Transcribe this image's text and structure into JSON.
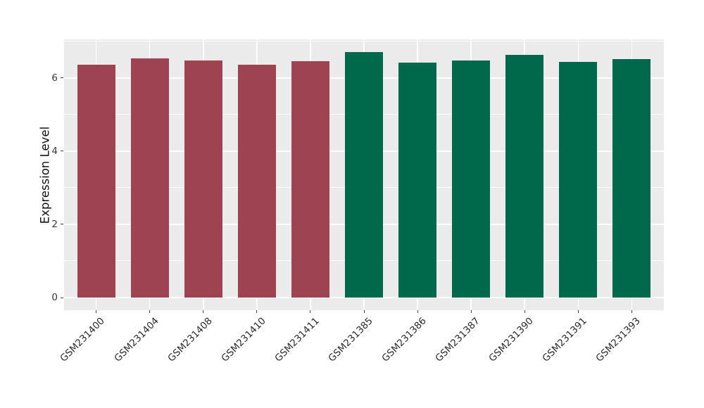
{
  "figure": {
    "background": "#FFFFFF",
    "panel_background": "#EBEBEB",
    "grid_color": "#FFFFFF",
    "tick_color": "#454545",
    "axis_text_color": "#2B2B2B"
  },
  "chart_data": {
    "type": "bar",
    "title": "",
    "xlabel": "",
    "ylabel": "Expression Level",
    "ylim": [
      -0.35,
      7.04
    ],
    "yticks": [
      0,
      2,
      4,
      6
    ],
    "yticks_minor": [
      1,
      3,
      5,
      7
    ],
    "grid": true,
    "legend_position": "none",
    "x_label_rotation_deg": 45,
    "categories": [
      "GSM231400",
      "GSM231404",
      "GSM231408",
      "GSM231410",
      "GSM231411",
      "GSM231385",
      "GSM231386",
      "GSM231387",
      "GSM231390",
      "GSM231391",
      "GSM231393"
    ],
    "values": [
      6.35,
      6.54,
      6.48,
      6.35,
      6.46,
      6.7,
      6.41,
      6.47,
      6.62,
      6.43,
      6.51
    ],
    "bar_colors": [
      "#9E4352",
      "#9E4352",
      "#9E4352",
      "#9E4352",
      "#9E4352",
      "#00694C",
      "#00694C",
      "#00694C",
      "#00694C",
      "#00694C",
      "#00694C"
    ],
    "group_colors": {
      "left_group": "#9E4352",
      "right_group": "#00694C"
    }
  }
}
